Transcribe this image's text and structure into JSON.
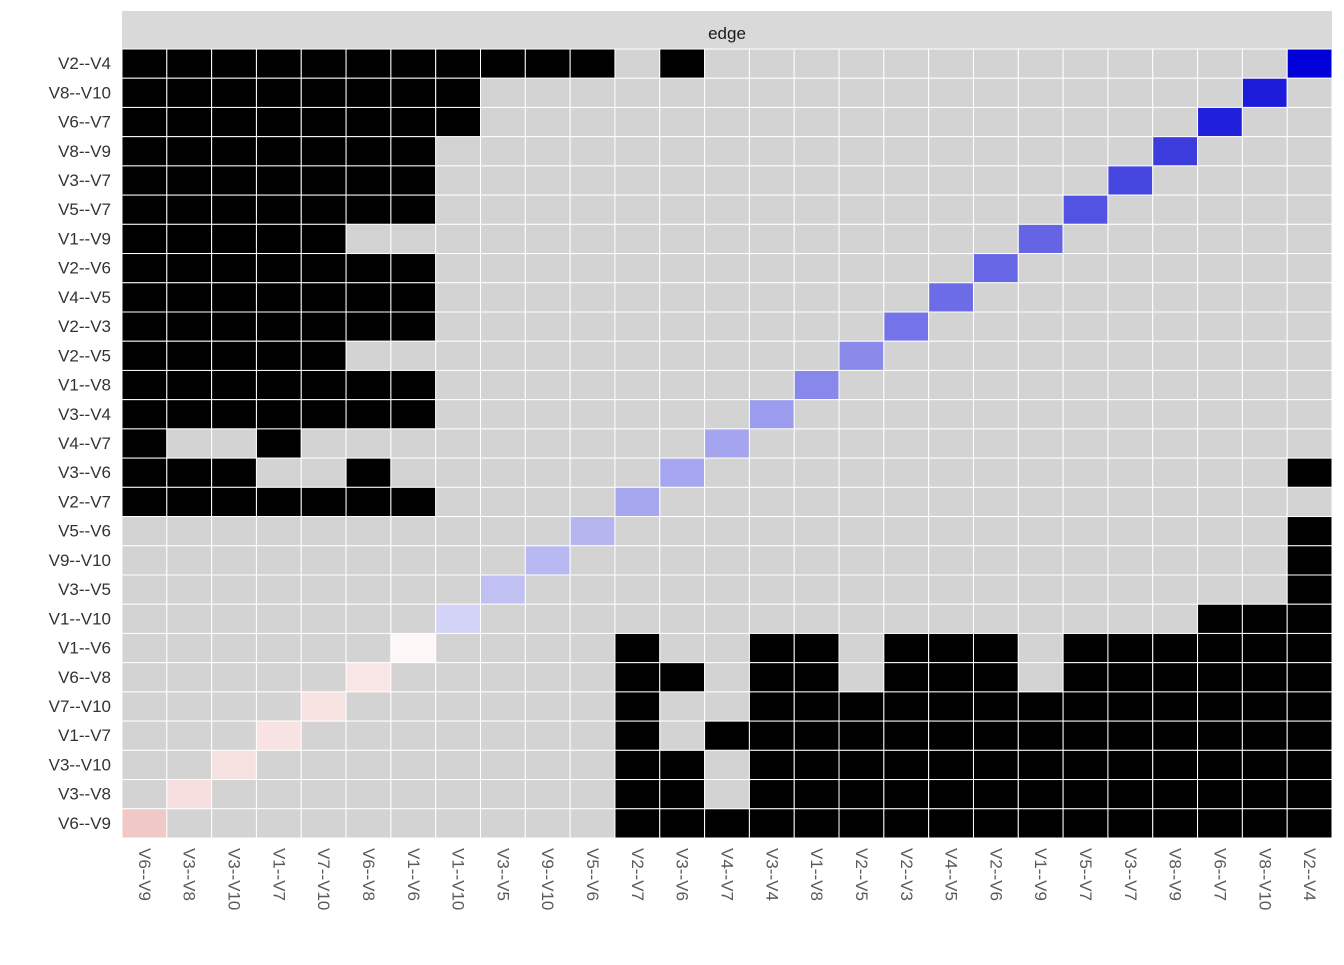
{
  "chart_data": {
    "type": "heatmap",
    "facet_label": "edge",
    "rows": [
      "V2--V4",
      "V8--V10",
      "V6--V7",
      "V8--V9",
      "V3--V7",
      "V5--V7",
      "V1--V9",
      "V2--V6",
      "V4--V5",
      "V2--V3",
      "V2--V5",
      "V1--V8",
      "V3--V4",
      "V4--V7",
      "V3--V6",
      "V2--V7",
      "V5--V6",
      "V9--V10",
      "V3--V5",
      "V1--V10",
      "V1--V6",
      "V6--V8",
      "V7--V10",
      "V1--V7",
      "V3--V10",
      "V3--V8",
      "V6--V9"
    ],
    "columns": [
      "V6--V9",
      "V3--V8",
      "V3--V10",
      "V1--V7",
      "V7--V10",
      "V6--V8",
      "V1--V6",
      "V1--V10",
      "V3--V5",
      "V9--V10",
      "V5--V6",
      "V2--V7",
      "V3--V6",
      "V4--V7",
      "V3--V4",
      "V1--V8",
      "V2--V5",
      "V2--V3",
      "V4--V5",
      "V2--V6",
      "V1--V9",
      "V5--V7",
      "V3--V7",
      "V8--V9",
      "V6--V7",
      "V8--V10",
      "V2--V4"
    ],
    "cell_states_legend": {
      "0": "empty (grey)",
      "1": "filled (black)",
      "2": "diagonal value (gradient)"
    },
    "cell_states": [
      [
        1,
        1,
        1,
        1,
        1,
        1,
        1,
        1,
        1,
        1,
        1,
        0,
        1,
        0,
        0,
        0,
        0,
        0,
        0,
        0,
        0,
        0,
        0,
        0,
        0,
        0,
        2
      ],
      [
        1,
        1,
        1,
        1,
        1,
        1,
        1,
        1,
        0,
        0,
        0,
        0,
        0,
        0,
        0,
        0,
        0,
        0,
        0,
        0,
        0,
        0,
        0,
        0,
        0,
        2,
        0
      ],
      [
        1,
        1,
        1,
        1,
        1,
        1,
        1,
        1,
        0,
        0,
        0,
        0,
        0,
        0,
        0,
        0,
        0,
        0,
        0,
        0,
        0,
        0,
        0,
        0,
        2,
        0,
        0
      ],
      [
        1,
        1,
        1,
        1,
        1,
        1,
        1,
        0,
        0,
        0,
        0,
        0,
        0,
        0,
        0,
        0,
        0,
        0,
        0,
        0,
        0,
        0,
        0,
        2,
        0,
        0,
        0
      ],
      [
        1,
        1,
        1,
        1,
        1,
        1,
        1,
        0,
        0,
        0,
        0,
        0,
        0,
        0,
        0,
        0,
        0,
        0,
        0,
        0,
        0,
        0,
        2,
        0,
        0,
        0,
        0
      ],
      [
        1,
        1,
        1,
        1,
        1,
        1,
        1,
        0,
        0,
        0,
        0,
        0,
        0,
        0,
        0,
        0,
        0,
        0,
        0,
        0,
        0,
        2,
        0,
        0,
        0,
        0,
        0
      ],
      [
        1,
        1,
        1,
        1,
        1,
        0,
        0,
        0,
        0,
        0,
        0,
        0,
        0,
        0,
        0,
        0,
        0,
        0,
        0,
        0,
        2,
        0,
        0,
        0,
        0,
        0,
        0
      ],
      [
        1,
        1,
        1,
        1,
        1,
        1,
        1,
        0,
        0,
        0,
        0,
        0,
        0,
        0,
        0,
        0,
        0,
        0,
        0,
        2,
        0,
        0,
        0,
        0,
        0,
        0,
        0
      ],
      [
        1,
        1,
        1,
        1,
        1,
        1,
        1,
        0,
        0,
        0,
        0,
        0,
        0,
        0,
        0,
        0,
        0,
        0,
        2,
        0,
        0,
        0,
        0,
        0,
        0,
        0,
        0
      ],
      [
        1,
        1,
        1,
        1,
        1,
        1,
        1,
        0,
        0,
        0,
        0,
        0,
        0,
        0,
        0,
        0,
        0,
        2,
        0,
        0,
        0,
        0,
        0,
        0,
        0,
        0,
        0
      ],
      [
        1,
        1,
        1,
        1,
        1,
        0,
        0,
        0,
        0,
        0,
        0,
        0,
        0,
        0,
        0,
        0,
        2,
        0,
        0,
        0,
        0,
        0,
        0,
        0,
        0,
        0,
        0
      ],
      [
        1,
        1,
        1,
        1,
        1,
        1,
        1,
        0,
        0,
        0,
        0,
        0,
        0,
        0,
        0,
        2,
        0,
        0,
        0,
        0,
        0,
        0,
        0,
        0,
        0,
        0,
        0
      ],
      [
        1,
        1,
        1,
        1,
        1,
        1,
        1,
        0,
        0,
        0,
        0,
        0,
        0,
        0,
        2,
        0,
        0,
        0,
        0,
        0,
        0,
        0,
        0,
        0,
        0,
        0,
        0
      ],
      [
        1,
        0,
        0,
        1,
        0,
        0,
        0,
        0,
        0,
        0,
        0,
        0,
        0,
        2,
        0,
        0,
        0,
        0,
        0,
        0,
        0,
        0,
        0,
        0,
        0,
        0,
        0
      ],
      [
        1,
        1,
        1,
        0,
        0,
        1,
        0,
        0,
        0,
        0,
        0,
        0,
        2,
        0,
        0,
        0,
        0,
        0,
        0,
        0,
        0,
        0,
        0,
        0,
        0,
        0,
        1
      ],
      [
        1,
        1,
        1,
        1,
        1,
        1,
        1,
        0,
        0,
        0,
        0,
        2,
        0,
        0,
        0,
        0,
        0,
        0,
        0,
        0,
        0,
        0,
        0,
        0,
        0,
        0,
        0
      ],
      [
        0,
        0,
        0,
        0,
        0,
        0,
        0,
        0,
        0,
        0,
        2,
        0,
        0,
        0,
        0,
        0,
        0,
        0,
        0,
        0,
        0,
        0,
        0,
        0,
        0,
        0,
        1
      ],
      [
        0,
        0,
        0,
        0,
        0,
        0,
        0,
        0,
        0,
        2,
        0,
        0,
        0,
        0,
        0,
        0,
        0,
        0,
        0,
        0,
        0,
        0,
        0,
        0,
        0,
        0,
        1
      ],
      [
        0,
        0,
        0,
        0,
        0,
        0,
        0,
        0,
        2,
        0,
        0,
        0,
        0,
        0,
        0,
        0,
        0,
        0,
        0,
        0,
        0,
        0,
        0,
        0,
        0,
        0,
        1
      ],
      [
        0,
        0,
        0,
        0,
        0,
        0,
        0,
        2,
        0,
        0,
        0,
        0,
        0,
        0,
        0,
        0,
        0,
        0,
        0,
        0,
        0,
        0,
        0,
        0,
        1,
        1,
        1
      ],
      [
        0,
        0,
        0,
        0,
        0,
        0,
        2,
        0,
        0,
        0,
        0,
        1,
        0,
        0,
        1,
        1,
        0,
        1,
        1,
        1,
        0,
        1,
        1,
        1,
        1,
        1,
        1
      ],
      [
        0,
        0,
        0,
        0,
        0,
        2,
        0,
        0,
        0,
        0,
        0,
        1,
        1,
        0,
        1,
        1,
        0,
        1,
        1,
        1,
        0,
        1,
        1,
        1,
        1,
        1,
        1
      ],
      [
        0,
        0,
        0,
        0,
        2,
        0,
        0,
        0,
        0,
        0,
        0,
        1,
        0,
        0,
        1,
        1,
        1,
        1,
        1,
        1,
        1,
        1,
        1,
        1,
        1,
        1,
        1
      ],
      [
        0,
        0,
        0,
        2,
        0,
        0,
        0,
        0,
        0,
        0,
        0,
        1,
        0,
        1,
        1,
        1,
        1,
        1,
        1,
        1,
        1,
        1,
        1,
        1,
        1,
        1,
        1
      ],
      [
        0,
        0,
        2,
        0,
        0,
        0,
        0,
        0,
        0,
        0,
        0,
        1,
        1,
        0,
        1,
        1,
        1,
        1,
        1,
        1,
        1,
        1,
        1,
        1,
        1,
        1,
        1
      ],
      [
        0,
        2,
        0,
        0,
        0,
        0,
        0,
        0,
        0,
        0,
        0,
        1,
        1,
        0,
        1,
        1,
        1,
        1,
        1,
        1,
        1,
        1,
        1,
        1,
        1,
        1,
        1
      ],
      [
        2,
        0,
        0,
        0,
        0,
        0,
        0,
        0,
        0,
        0,
        0,
        1,
        1,
        1,
        1,
        1,
        1,
        1,
        1,
        1,
        1,
        1,
        1,
        1,
        1,
        1,
        1
      ]
    ],
    "diagonal_colors": [
      "#f0c8c8",
      "#f7dfdf",
      "#f6e1e1",
      "#f8e2e2",
      "#f8e3e3",
      "#f9e6e6",
      "#fdf7f7",
      "#d3d3f7",
      "#c0c0f2",
      "#b8b8f2",
      "#b5b5f0",
      "#a6a6ef",
      "#a6a6f0",
      "#a4a4ef",
      "#9c9cee",
      "#8888ea",
      "#8a8aeb",
      "#7474e8",
      "#6c6ce7",
      "#6868e6",
      "#6464e5",
      "#5252e3",
      "#4646e1",
      "#3c3cdd",
      "#2020dc",
      "#1c1cda",
      "#0000d8"
    ],
    "grid": true,
    "legend": "none"
  },
  "colors": {
    "empty": "#d3d3d3",
    "filled": "#000000",
    "strip_bg": "#d9d9d9",
    "grid_line": "#ffffff",
    "axis_text_y": "#333333",
    "axis_text_x": "#5a5a5a"
  }
}
